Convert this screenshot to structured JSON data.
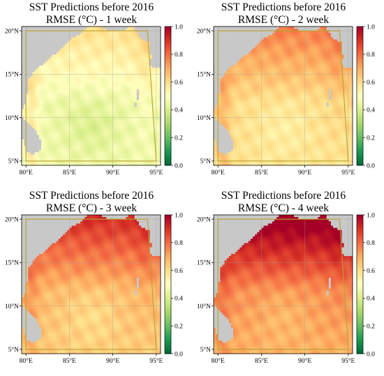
{
  "figure": {
    "colorbar": {
      "colormap": "RdYlGn_r",
      "min": 0.0,
      "max": 1.0,
      "tick_labels": [
        "0.0",
        "0.2",
        "0.4",
        "0.6",
        "0.8",
        "1.0"
      ],
      "tick_values": [
        0.0,
        0.2,
        0.4,
        0.6,
        0.8,
        1.0
      ]
    },
    "map": {
      "lon_range": [
        79.5,
        95.5
      ],
      "lat_range": [
        4.5,
        20.5
      ],
      "lon_ticks": [
        80,
        85,
        90,
        95
      ],
      "lat_ticks": [
        5,
        10,
        15,
        20
      ],
      "lon_tick_labels": [
        "80°E",
        "85°E",
        "90°E",
        "95°E"
      ],
      "lat_tick_labels": [
        "5°N",
        "10°N",
        "15°N",
        "20°N"
      ],
      "land_color": "#c8c8c8",
      "grid_color": "#9e9e9e",
      "boundary_color": "#b8a12a"
    },
    "panels": [
      {
        "title1": "SST Predictions before 2016",
        "title2": "RMSE (°C) - 1 week",
        "base": 0.46,
        "south_bias": 0.0,
        "north_ramp": 0.14,
        "coast_bump": 0.1,
        "center_dip": 0.05
      },
      {
        "title1": "SST Predictions before 2016",
        "title2": "RMSE (°C) - 2 week",
        "base": 0.62,
        "south_bias": -0.03,
        "north_ramp": 0.16,
        "coast_bump": 0.08,
        "center_dip": 0.04
      },
      {
        "title1": "SST Predictions before 2016",
        "title2": "RMSE (°C) - 3 week",
        "base": 0.72,
        "south_bias": -0.07,
        "north_ramp": 0.2,
        "coast_bump": 0.06,
        "center_dip": 0.05
      },
      {
        "title1": "SST Predictions before 2016",
        "title2": "RMSE (°C) - 4 week",
        "base": 0.81,
        "south_bias": -0.1,
        "north_ramp": 0.25,
        "coast_bump": 0.05,
        "center_dip": 0.04
      }
    ]
  }
}
